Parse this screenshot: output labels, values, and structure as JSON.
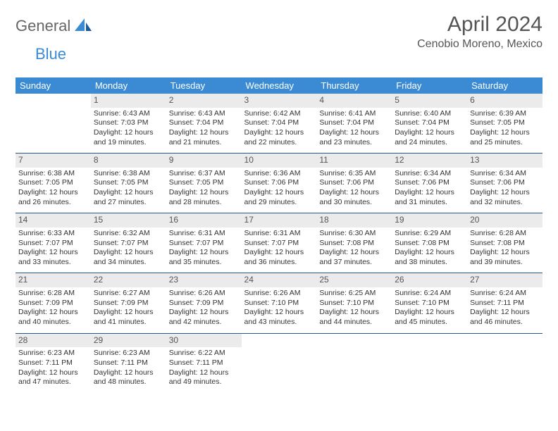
{
  "brand": {
    "general": "General",
    "blue": "Blue"
  },
  "title": "April 2024",
  "location": "Cenobio Moreno, Mexico",
  "colors": {
    "header_bg": "#3b8bd4",
    "header_text": "#ffffff",
    "daynum_bg": "#ebebeb",
    "separator": "#215a8c",
    "text": "#333333",
    "brand_gray": "#666666",
    "brand_blue": "#3b8bd4"
  },
  "weekdays": [
    "Sunday",
    "Monday",
    "Tuesday",
    "Wednesday",
    "Thursday",
    "Friday",
    "Saturday"
  ],
  "weeks": [
    [
      null,
      {
        "d": "1",
        "sr": "Sunrise: 6:43 AM",
        "ss": "Sunset: 7:03 PM",
        "dl1": "Daylight: 12 hours",
        "dl2": "and 19 minutes."
      },
      {
        "d": "2",
        "sr": "Sunrise: 6:43 AM",
        "ss": "Sunset: 7:04 PM",
        "dl1": "Daylight: 12 hours",
        "dl2": "and 21 minutes."
      },
      {
        "d": "3",
        "sr": "Sunrise: 6:42 AM",
        "ss": "Sunset: 7:04 PM",
        "dl1": "Daylight: 12 hours",
        "dl2": "and 22 minutes."
      },
      {
        "d": "4",
        "sr": "Sunrise: 6:41 AM",
        "ss": "Sunset: 7:04 PM",
        "dl1": "Daylight: 12 hours",
        "dl2": "and 23 minutes."
      },
      {
        "d": "5",
        "sr": "Sunrise: 6:40 AM",
        "ss": "Sunset: 7:04 PM",
        "dl1": "Daylight: 12 hours",
        "dl2": "and 24 minutes."
      },
      {
        "d": "6",
        "sr": "Sunrise: 6:39 AM",
        "ss": "Sunset: 7:05 PM",
        "dl1": "Daylight: 12 hours",
        "dl2": "and 25 minutes."
      }
    ],
    [
      {
        "d": "7",
        "sr": "Sunrise: 6:38 AM",
        "ss": "Sunset: 7:05 PM",
        "dl1": "Daylight: 12 hours",
        "dl2": "and 26 minutes."
      },
      {
        "d": "8",
        "sr": "Sunrise: 6:38 AM",
        "ss": "Sunset: 7:05 PM",
        "dl1": "Daylight: 12 hours",
        "dl2": "and 27 minutes."
      },
      {
        "d": "9",
        "sr": "Sunrise: 6:37 AM",
        "ss": "Sunset: 7:05 PM",
        "dl1": "Daylight: 12 hours",
        "dl2": "and 28 minutes."
      },
      {
        "d": "10",
        "sr": "Sunrise: 6:36 AM",
        "ss": "Sunset: 7:06 PM",
        "dl1": "Daylight: 12 hours",
        "dl2": "and 29 minutes."
      },
      {
        "d": "11",
        "sr": "Sunrise: 6:35 AM",
        "ss": "Sunset: 7:06 PM",
        "dl1": "Daylight: 12 hours",
        "dl2": "and 30 minutes."
      },
      {
        "d": "12",
        "sr": "Sunrise: 6:34 AM",
        "ss": "Sunset: 7:06 PM",
        "dl1": "Daylight: 12 hours",
        "dl2": "and 31 minutes."
      },
      {
        "d": "13",
        "sr": "Sunrise: 6:34 AM",
        "ss": "Sunset: 7:06 PM",
        "dl1": "Daylight: 12 hours",
        "dl2": "and 32 minutes."
      }
    ],
    [
      {
        "d": "14",
        "sr": "Sunrise: 6:33 AM",
        "ss": "Sunset: 7:07 PM",
        "dl1": "Daylight: 12 hours",
        "dl2": "and 33 minutes."
      },
      {
        "d": "15",
        "sr": "Sunrise: 6:32 AM",
        "ss": "Sunset: 7:07 PM",
        "dl1": "Daylight: 12 hours",
        "dl2": "and 34 minutes."
      },
      {
        "d": "16",
        "sr": "Sunrise: 6:31 AM",
        "ss": "Sunset: 7:07 PM",
        "dl1": "Daylight: 12 hours",
        "dl2": "and 35 minutes."
      },
      {
        "d": "17",
        "sr": "Sunrise: 6:31 AM",
        "ss": "Sunset: 7:07 PM",
        "dl1": "Daylight: 12 hours",
        "dl2": "and 36 minutes."
      },
      {
        "d": "18",
        "sr": "Sunrise: 6:30 AM",
        "ss": "Sunset: 7:08 PM",
        "dl1": "Daylight: 12 hours",
        "dl2": "and 37 minutes."
      },
      {
        "d": "19",
        "sr": "Sunrise: 6:29 AM",
        "ss": "Sunset: 7:08 PM",
        "dl1": "Daylight: 12 hours",
        "dl2": "and 38 minutes."
      },
      {
        "d": "20",
        "sr": "Sunrise: 6:28 AM",
        "ss": "Sunset: 7:08 PM",
        "dl1": "Daylight: 12 hours",
        "dl2": "and 39 minutes."
      }
    ],
    [
      {
        "d": "21",
        "sr": "Sunrise: 6:28 AM",
        "ss": "Sunset: 7:09 PM",
        "dl1": "Daylight: 12 hours",
        "dl2": "and 40 minutes."
      },
      {
        "d": "22",
        "sr": "Sunrise: 6:27 AM",
        "ss": "Sunset: 7:09 PM",
        "dl1": "Daylight: 12 hours",
        "dl2": "and 41 minutes."
      },
      {
        "d": "23",
        "sr": "Sunrise: 6:26 AM",
        "ss": "Sunset: 7:09 PM",
        "dl1": "Daylight: 12 hours",
        "dl2": "and 42 minutes."
      },
      {
        "d": "24",
        "sr": "Sunrise: 6:26 AM",
        "ss": "Sunset: 7:10 PM",
        "dl1": "Daylight: 12 hours",
        "dl2": "and 43 minutes."
      },
      {
        "d": "25",
        "sr": "Sunrise: 6:25 AM",
        "ss": "Sunset: 7:10 PM",
        "dl1": "Daylight: 12 hours",
        "dl2": "and 44 minutes."
      },
      {
        "d": "26",
        "sr": "Sunrise: 6:24 AM",
        "ss": "Sunset: 7:10 PM",
        "dl1": "Daylight: 12 hours",
        "dl2": "and 45 minutes."
      },
      {
        "d": "27",
        "sr": "Sunrise: 6:24 AM",
        "ss": "Sunset: 7:11 PM",
        "dl1": "Daylight: 12 hours",
        "dl2": "and 46 minutes."
      }
    ],
    [
      {
        "d": "28",
        "sr": "Sunrise: 6:23 AM",
        "ss": "Sunset: 7:11 PM",
        "dl1": "Daylight: 12 hours",
        "dl2": "and 47 minutes."
      },
      {
        "d": "29",
        "sr": "Sunrise: 6:23 AM",
        "ss": "Sunset: 7:11 PM",
        "dl1": "Daylight: 12 hours",
        "dl2": "and 48 minutes."
      },
      {
        "d": "30",
        "sr": "Sunrise: 6:22 AM",
        "ss": "Sunset: 7:11 PM",
        "dl1": "Daylight: 12 hours",
        "dl2": "and 49 minutes."
      },
      null,
      null,
      null,
      null
    ]
  ]
}
